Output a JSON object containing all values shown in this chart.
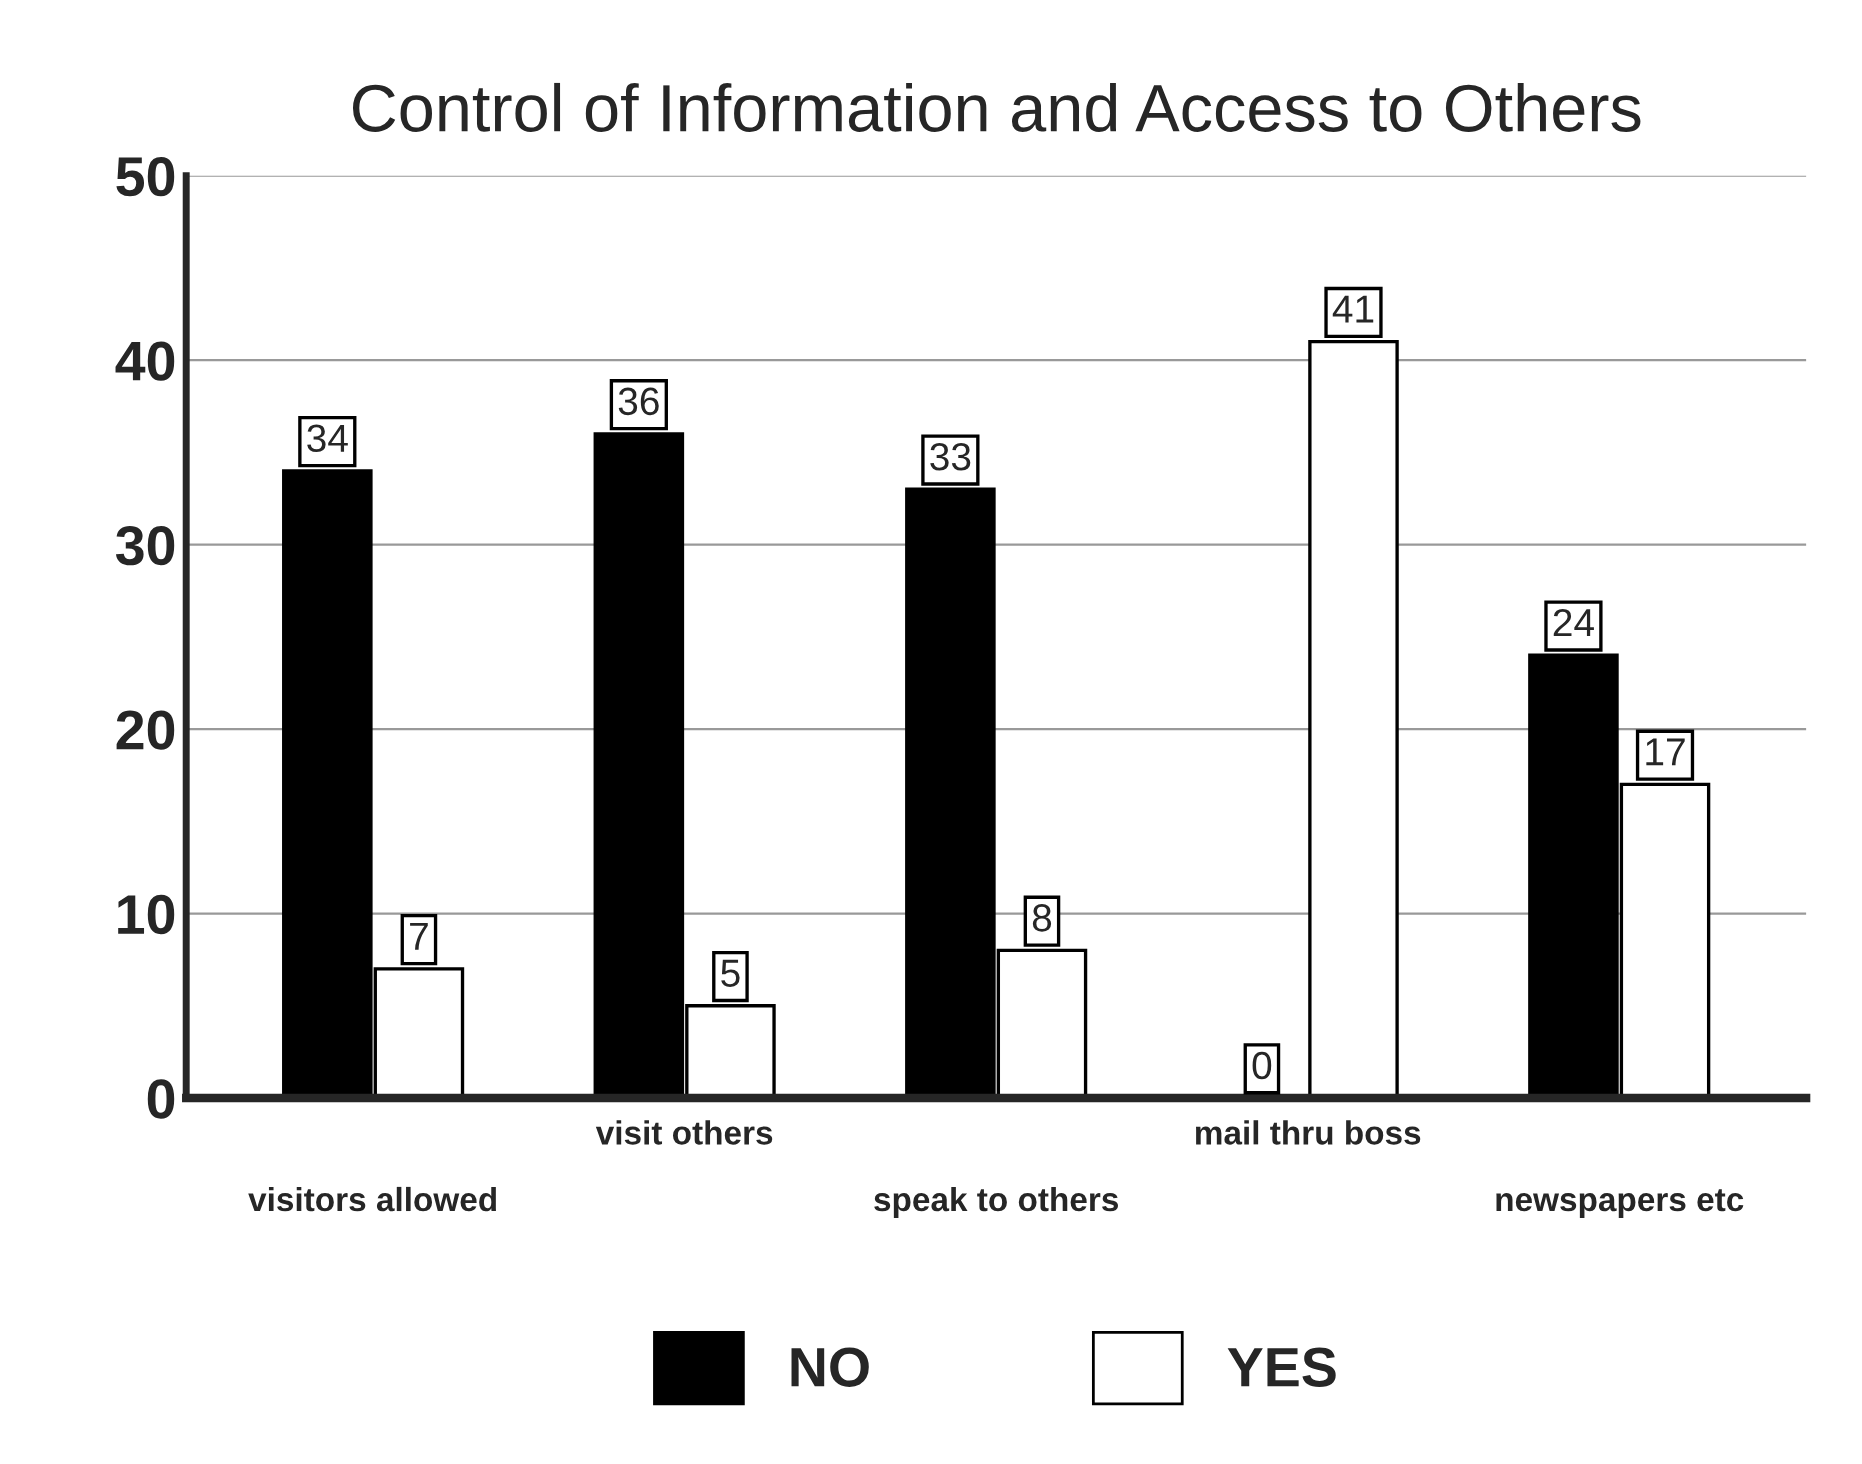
{
  "chart_data": {
    "type": "bar",
    "title": "Control of Information and Access to Others",
    "categories": [
      "visitors allowed",
      "visit others",
      "speak to others",
      "mail thru boss",
      "newspapers etc"
    ],
    "series": [
      {
        "name": "NO",
        "color": "#000000",
        "values": [
          34,
          36,
          33,
          0,
          24
        ]
      },
      {
        "name": "YES",
        "color": "#ffffff",
        "values": [
          7,
          5,
          8,
          41,
          17
        ]
      }
    ],
    "ylim": [
      0,
      50
    ],
    "yticks": [
      0,
      10,
      20,
      30,
      40,
      50
    ],
    "grid": "y",
    "legend": "bottom",
    "data_labels": true
  }
}
